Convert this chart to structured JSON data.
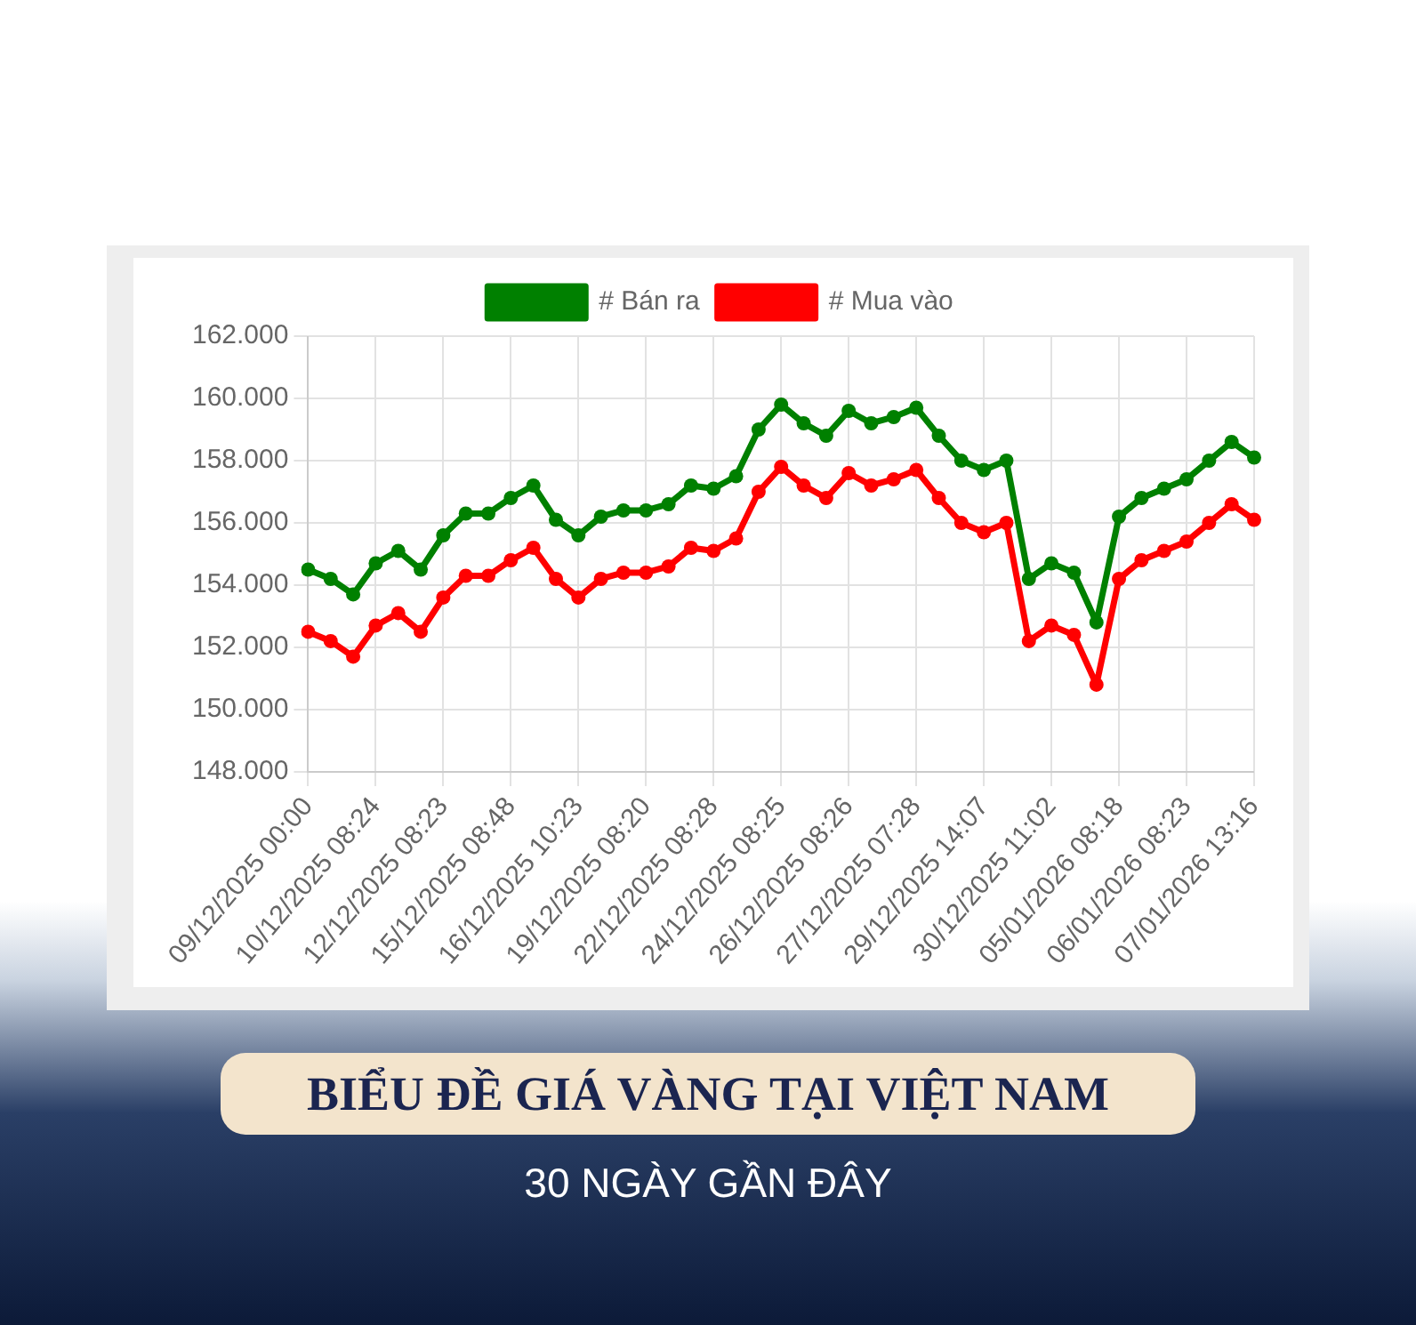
{
  "chart_data": {
    "type": "line",
    "title": "BIỂU ĐỀ GIÁ VÀNG TẠI VIỆT NAM",
    "subtitle": "30 NGÀY GẦN ĐÂY",
    "categories": [
      "09/12/2025 00:00",
      null,
      null,
      "10/12/2025 08:24",
      null,
      null,
      "12/12/2025 08:23",
      null,
      null,
      "15/12/2025 08:48",
      null,
      null,
      "16/12/2025 10:23",
      null,
      null,
      "19/12/2025 08:20",
      null,
      null,
      "22/12/2025 08:28",
      null,
      null,
      "24/12/2025 08:25",
      null,
      null,
      "26/12/2025 08:26",
      null,
      null,
      "27/12/2025 07:28",
      null,
      null,
      "29/12/2025 14:07",
      null,
      null,
      "30/12/2025 11:02",
      null,
      null,
      "05/01/2026 08:18",
      null,
      null,
      "06/01/2026 08:23",
      null,
      null,
      "07/01/2026 13:16"
    ],
    "series": [
      {
        "name": "# Bán ra",
        "color": "#008000",
        "values": [
          154500,
          154200,
          153700,
          154700,
          155100,
          154500,
          155600,
          156300,
          156300,
          156800,
          157200,
          156100,
          155600,
          156200,
          156400,
          156400,
          156600,
          157200,
          157100,
          157500,
          159000,
          159800,
          159200,
          158800,
          159600,
          159200,
          159400,
          159700,
          158800,
          158000,
          157700,
          158000,
          154200,
          154700,
          154400,
          152800,
          156200,
          156800,
          157100,
          157400,
          158000,
          158600,
          158100
        ]
      },
      {
        "name": "# Mua vào",
        "color": "#ff0000",
        "values": [
          152500,
          152200,
          151700,
          152700,
          153100,
          152500,
          153600,
          154300,
          154300,
          154800,
          155200,
          154200,
          153600,
          154200,
          154400,
          154400,
          154600,
          155200,
          155100,
          155500,
          157000,
          157800,
          157200,
          156800,
          157600,
          157200,
          157400,
          157700,
          156800,
          156000,
          155700,
          156000,
          152200,
          152700,
          152400,
          150800,
          154200,
          154800,
          155100,
          155400,
          156000,
          156600,
          156100
        ]
      }
    ],
    "ylim": [
      148000,
      162000
    ],
    "yticks": [
      {
        "value": 148000,
        "label": "148.000"
      },
      {
        "value": 150000,
        "label": "150.000"
      },
      {
        "value": 152000,
        "label": "152.000"
      },
      {
        "value": 154000,
        "label": "154.000"
      },
      {
        "value": 156000,
        "label": "156.000"
      },
      {
        "value": 158000,
        "label": "158.000"
      },
      {
        "value": 160000,
        "label": "160.000"
      },
      {
        "value": 162000,
        "label": "162.000"
      }
    ],
    "grid": true,
    "legend": "top",
    "marker": "circle",
    "line_style": "solid"
  }
}
